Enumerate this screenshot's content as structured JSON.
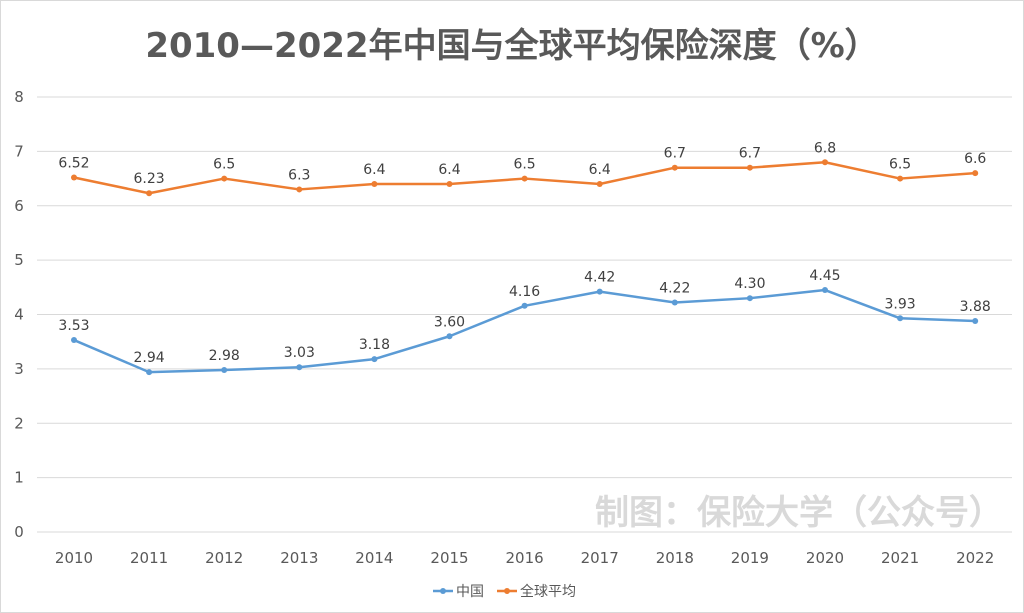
{
  "chart_data": {
    "type": "line",
    "title": "2010—2022年中国与全球平均保险深度（%）",
    "xlabel": "",
    "ylabel": "",
    "x": [
      "2010",
      "2011",
      "2012",
      "2013",
      "2014",
      "2015",
      "2016",
      "2017",
      "2018",
      "2019",
      "2020",
      "2021",
      "2022"
    ],
    "ylim": [
      0,
      8
    ],
    "yticks": [
      "0",
      "1",
      "2",
      "3",
      "4",
      "5",
      "6",
      "7",
      "8"
    ],
    "grid": true,
    "legend_position": "bottom-center",
    "series": [
      {
        "name": "中国",
        "color": "#5b9bd5",
        "values": [
          3.53,
          2.94,
          2.98,
          3.03,
          3.18,
          3.6,
          4.16,
          4.42,
          4.22,
          4.3,
          4.45,
          3.93,
          3.88
        ],
        "labels": [
          "3.53",
          "2.94",
          "2.98",
          "3.03",
          "3.18",
          "3.60",
          "4.16",
          "4.42",
          "4.22",
          "4.30",
          "4.45",
          "3.93",
          "3.88"
        ]
      },
      {
        "name": "全球平均",
        "color": "#ed7d31",
        "values": [
          6.52,
          6.23,
          6.5,
          6.3,
          6.4,
          6.4,
          6.5,
          6.4,
          6.7,
          6.7,
          6.8,
          6.5,
          6.6
        ],
        "labels": [
          "6.52",
          "6.23",
          "6.5",
          "6.3",
          "6.4",
          "6.4",
          "6.5",
          "6.4",
          "6.7",
          "6.7",
          "6.8",
          "6.5",
          "6.6"
        ]
      }
    ],
    "annotations": [
      "制图：保险大学（公众号）"
    ]
  },
  "watermark": "制图：保险大学（公众号）"
}
